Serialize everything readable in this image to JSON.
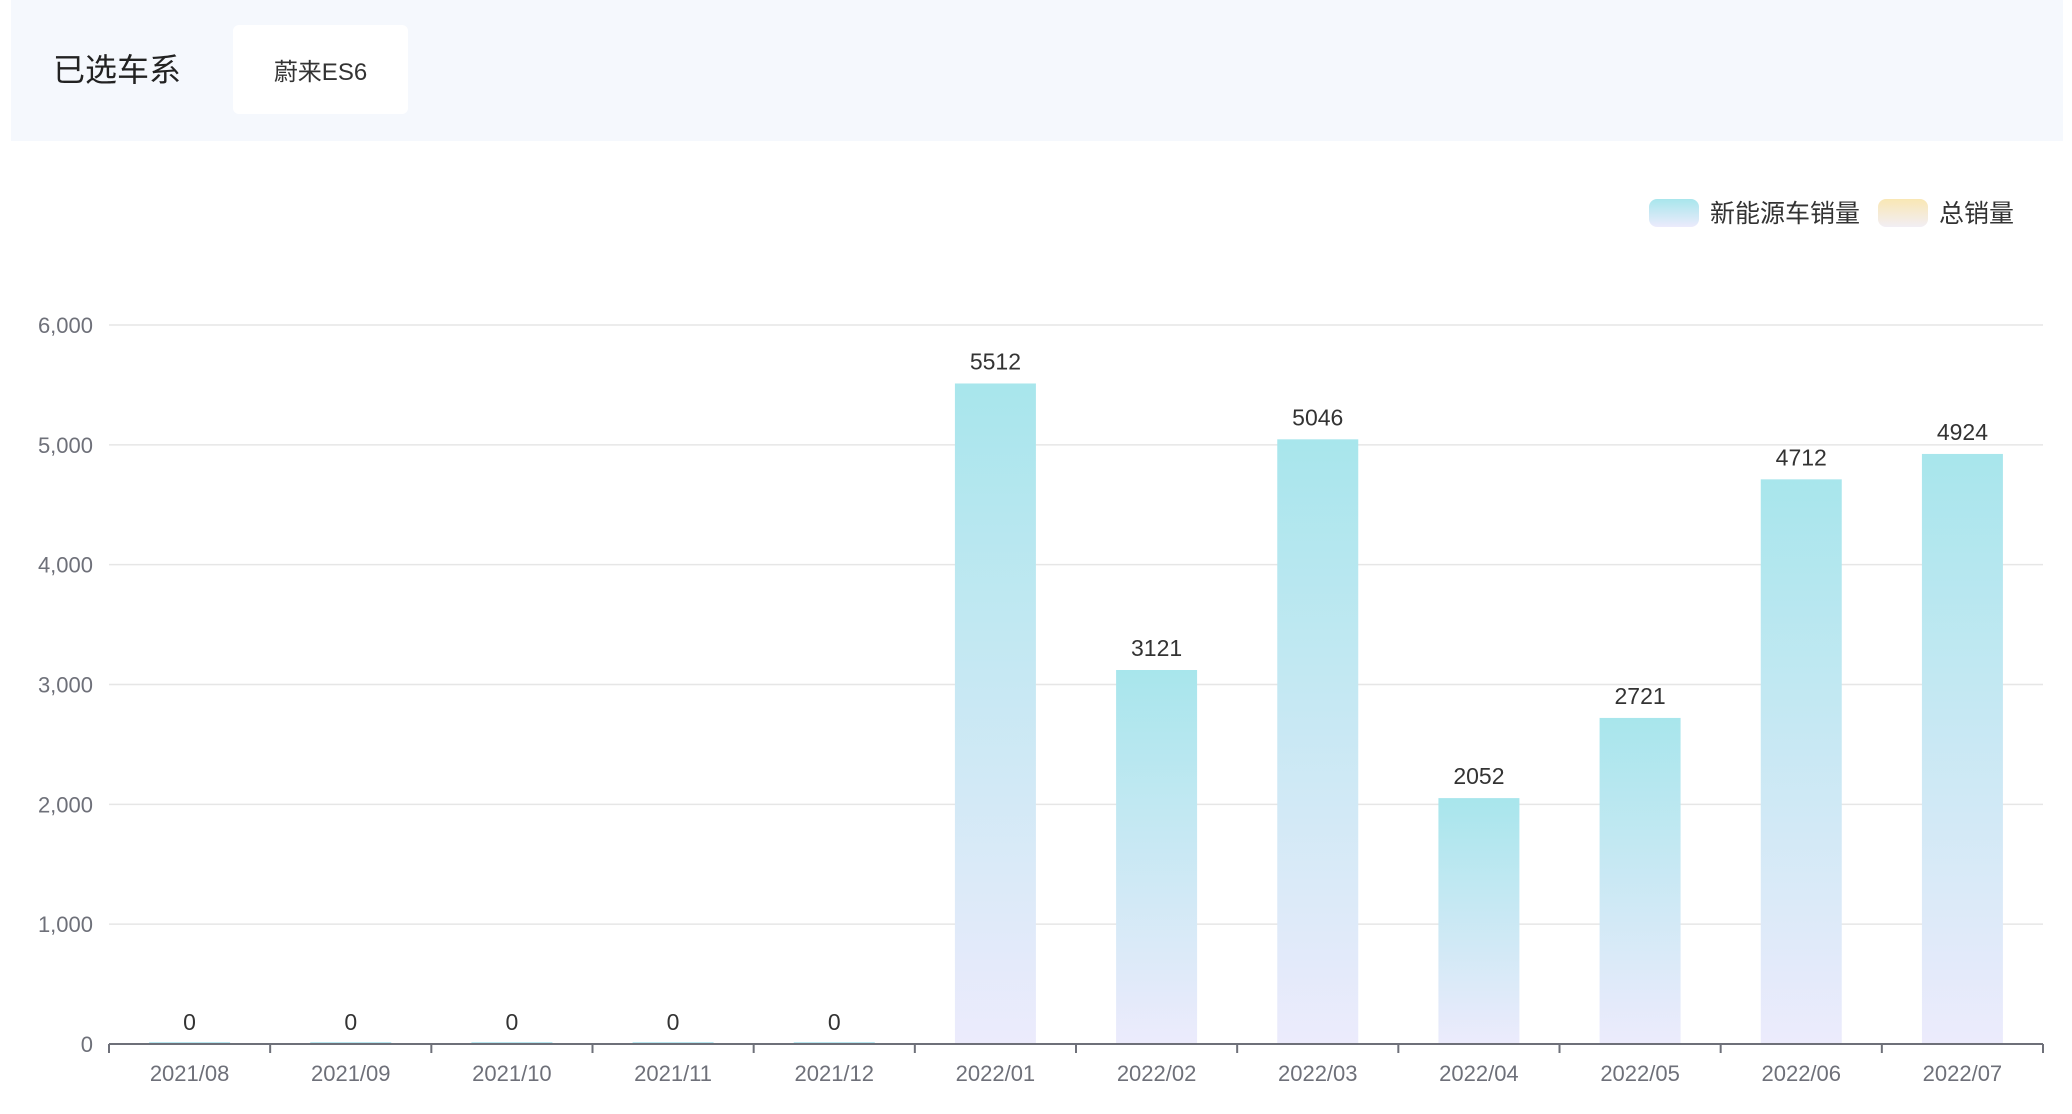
{
  "filter": {
    "label": "已选车系",
    "selected_series": "蔚来ES6"
  },
  "colors": {
    "nev_bar_top": "#a8e6ec",
    "nev_bar_bottom": "#ecebfc",
    "total_legend_top": "#f9e7b4",
    "total_legend_bottom": "#f2eef4",
    "grid": "#e6e6e6",
    "axis": "#6e7079",
    "tick_text": "#6e7079",
    "label_text": "#333333"
  },
  "chart_data": {
    "type": "bar",
    "categories": [
      "2021/08",
      "2021/09",
      "2021/10",
      "2021/11",
      "2021/12",
      "2022/01",
      "2022/02",
      "2022/03",
      "2022/04",
      "2022/05",
      "2022/06",
      "2022/07"
    ],
    "series": [
      {
        "name": "新能源车销量",
        "values": [
          0,
          0,
          0,
          0,
          0,
          5512,
          3121,
          5046,
          2052,
          2721,
          4712,
          4924
        ]
      }
    ],
    "legend": [
      "新能源车销量",
      "总销量"
    ],
    "legend_position": "top-right",
    "ylim": [
      0,
      6000
    ],
    "yticks": [
      "0",
      "1,000",
      "2,000",
      "3,000",
      "4,000",
      "5,000",
      "6,000"
    ],
    "ytick_values": [
      0,
      1000,
      2000,
      3000,
      4000,
      5000,
      6000
    ],
    "grid": true,
    "data_labels": true
  }
}
